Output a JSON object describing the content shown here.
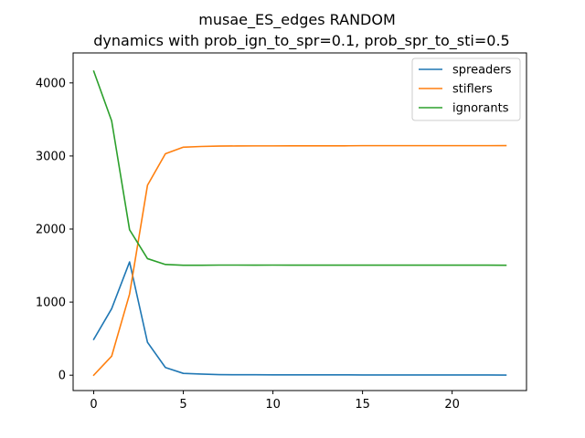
{
  "chart_data": {
    "type": "line",
    "title": "musae_ES_edges RANDOM",
    "subtitle": "dynamics with prob_ign_to_spr=0.1, prob_spr_to_sti=0.5",
    "xlabel": "",
    "ylabel": "",
    "xlim": [
      -1.15,
      24.15
    ],
    "ylim": [
      -210,
      4410
    ],
    "xticks": [
      0,
      5,
      10,
      15,
      20
    ],
    "yticks": [
      0,
      1000,
      2000,
      3000,
      4000
    ],
    "grid": false,
    "legend_position": "top-right",
    "x": [
      0,
      1,
      2,
      3,
      4,
      5,
      6,
      7,
      8,
      9,
      10,
      11,
      12,
      13,
      14,
      15,
      16,
      17,
      18,
      19,
      20,
      21,
      22,
      23
    ],
    "series": [
      {
        "name": "spreaders",
        "color": "#1f77b4",
        "values": [
          490,
          910,
          1550,
          450,
          105,
          25,
          15,
          8,
          6,
          6,
          5,
          5,
          5,
          5,
          5,
          3,
          3,
          3,
          3,
          3,
          3,
          3,
          3,
          2
        ]
      },
      {
        "name": "stiflers",
        "color": "#ff7f0e",
        "values": [
          0,
          260,
          1110,
          2600,
          3030,
          3120,
          3130,
          3135,
          3137,
          3138,
          3138,
          3139,
          3139,
          3139,
          3139,
          3141,
          3141,
          3141,
          3141,
          3141,
          3141,
          3141,
          3141,
          3142
        ]
      },
      {
        "name": "ignorants",
        "color": "#2ca02c",
        "values": [
          4160,
          3480,
          1990,
          1595,
          1515,
          1505,
          1505,
          1507,
          1507,
          1506,
          1507,
          1506,
          1506,
          1506,
          1506,
          1506,
          1506,
          1506,
          1506,
          1506,
          1506,
          1506,
          1506,
          1505
        ]
      }
    ]
  }
}
